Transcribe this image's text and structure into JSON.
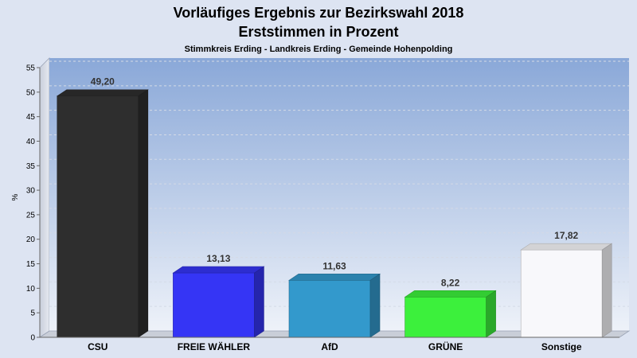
{
  "chart_data": {
    "type": "bar",
    "title": "Vorläufiges Ergebnis zur Bezirkswahl 2018",
    "title2": "Erststimmen in Prozent",
    "subtitle": "Stimmkreis Erding - Landkreis Erding - Gemeinde Hohenpolding",
    "ylabel": "%",
    "ylim": [
      0,
      55
    ],
    "yticks": [
      "0",
      "5",
      "10",
      "15",
      "20",
      "25",
      "30",
      "35",
      "40",
      "45",
      "50",
      "55"
    ],
    "grid": true,
    "categories": [
      "CSU",
      "FREIE WÄHLER",
      "AfD",
      "GRÜNE",
      "Sonstige"
    ],
    "values": [
      49.2,
      13.13,
      11.63,
      8.22,
      17.82
    ],
    "value_labels": [
      "49,20",
      "13,13",
      "11,63",
      "8,22",
      "17,82"
    ],
    "colors": [
      "#2e2e2e",
      "#3535f5",
      "#3399cc",
      "#3cf03c",
      "#f8f8fb"
    ]
  }
}
